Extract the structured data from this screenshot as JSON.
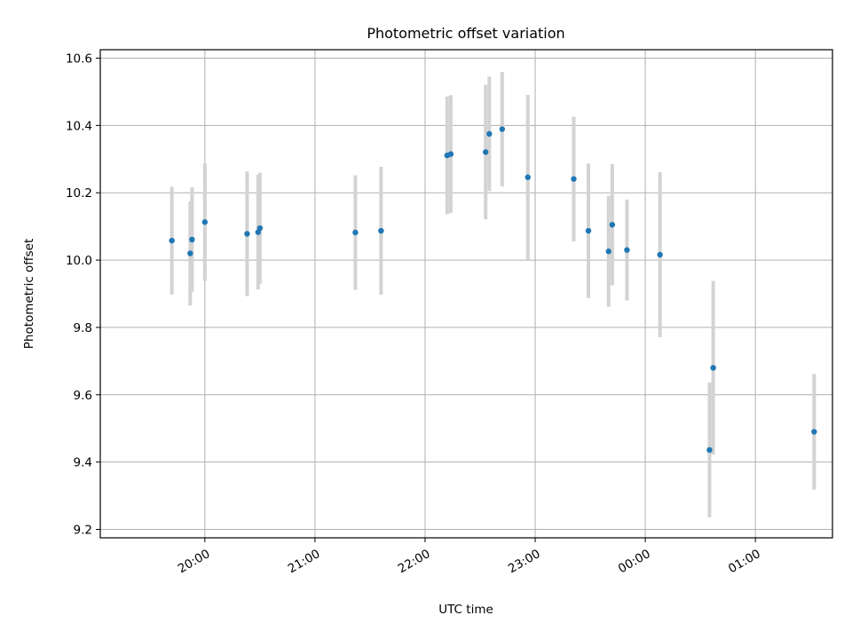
{
  "chart_data": {
    "type": "scatter",
    "title": "Photometric offset variation",
    "xlabel": "UTC time",
    "ylabel": "Photometric offset",
    "x_tick_labels": [
      "20:00",
      "21:00",
      "22:00",
      "23:00",
      "00:00",
      "01:00"
    ],
    "y_tick_labels": [
      "9.2",
      "9.4",
      "9.6",
      "9.8",
      "10.0",
      "10.2",
      "10.4",
      "10.6"
    ],
    "xlim": [
      "19:03",
      "25:42"
    ],
    "ylim": [
      9.175,
      10.625
    ],
    "grid": true,
    "colors": {
      "point": "#1f77b4",
      "errorbar": "#d3d3d3",
      "grid": "#b0b0b0"
    },
    "points": [
      {
        "x": "19:42",
        "y": 10.058,
        "err": 0.16
      },
      {
        "x": "19:52",
        "y": 10.02,
        "err": 0.155
      },
      {
        "x": "19:53",
        "y": 10.061,
        "err": 0.155
      },
      {
        "x": "20:00",
        "y": 10.113,
        "err": 0.175
      },
      {
        "x": "20:23",
        "y": 10.078,
        "err": 0.185
      },
      {
        "x": "20:29",
        "y": 10.083,
        "err": 0.17
      },
      {
        "x": "20:30",
        "y": 10.095,
        "err": 0.165
      },
      {
        "x": "21:22",
        "y": 10.082,
        "err": 0.17
      },
      {
        "x": "21:36",
        "y": 10.087,
        "err": 0.19
      },
      {
        "x": "22:12",
        "y": 10.311,
        "err": 0.175
      },
      {
        "x": "22:14",
        "y": 10.315,
        "err": 0.175
      },
      {
        "x": "22:33",
        "y": 10.321,
        "err": 0.2
      },
      {
        "x": "22:35",
        "y": 10.375,
        "err": 0.17
      },
      {
        "x": "22:42",
        "y": 10.389,
        "err": 0.17
      },
      {
        "x": "22:56",
        "y": 10.246,
        "err": 0.245
      },
      {
        "x": "23:21",
        "y": 10.241,
        "err": 0.185
      },
      {
        "x": "23:29",
        "y": 10.087,
        "err": 0.2
      },
      {
        "x": "23:40",
        "y": 10.026,
        "err": 0.165
      },
      {
        "x": "23:42",
        "y": 10.105,
        "err": 0.18
      },
      {
        "x": "23:50",
        "y": 10.03,
        "err": 0.15
      },
      {
        "x": "24:08",
        "y": 10.016,
        "err": 0.245
      },
      {
        "x": "24:35",
        "y": 9.436,
        "err": 0.2
      },
      {
        "x": "24:37",
        "y": 9.68,
        "err": 0.258
      },
      {
        "x": "25:32",
        "y": 9.49,
        "err": 0.172
      }
    ]
  }
}
